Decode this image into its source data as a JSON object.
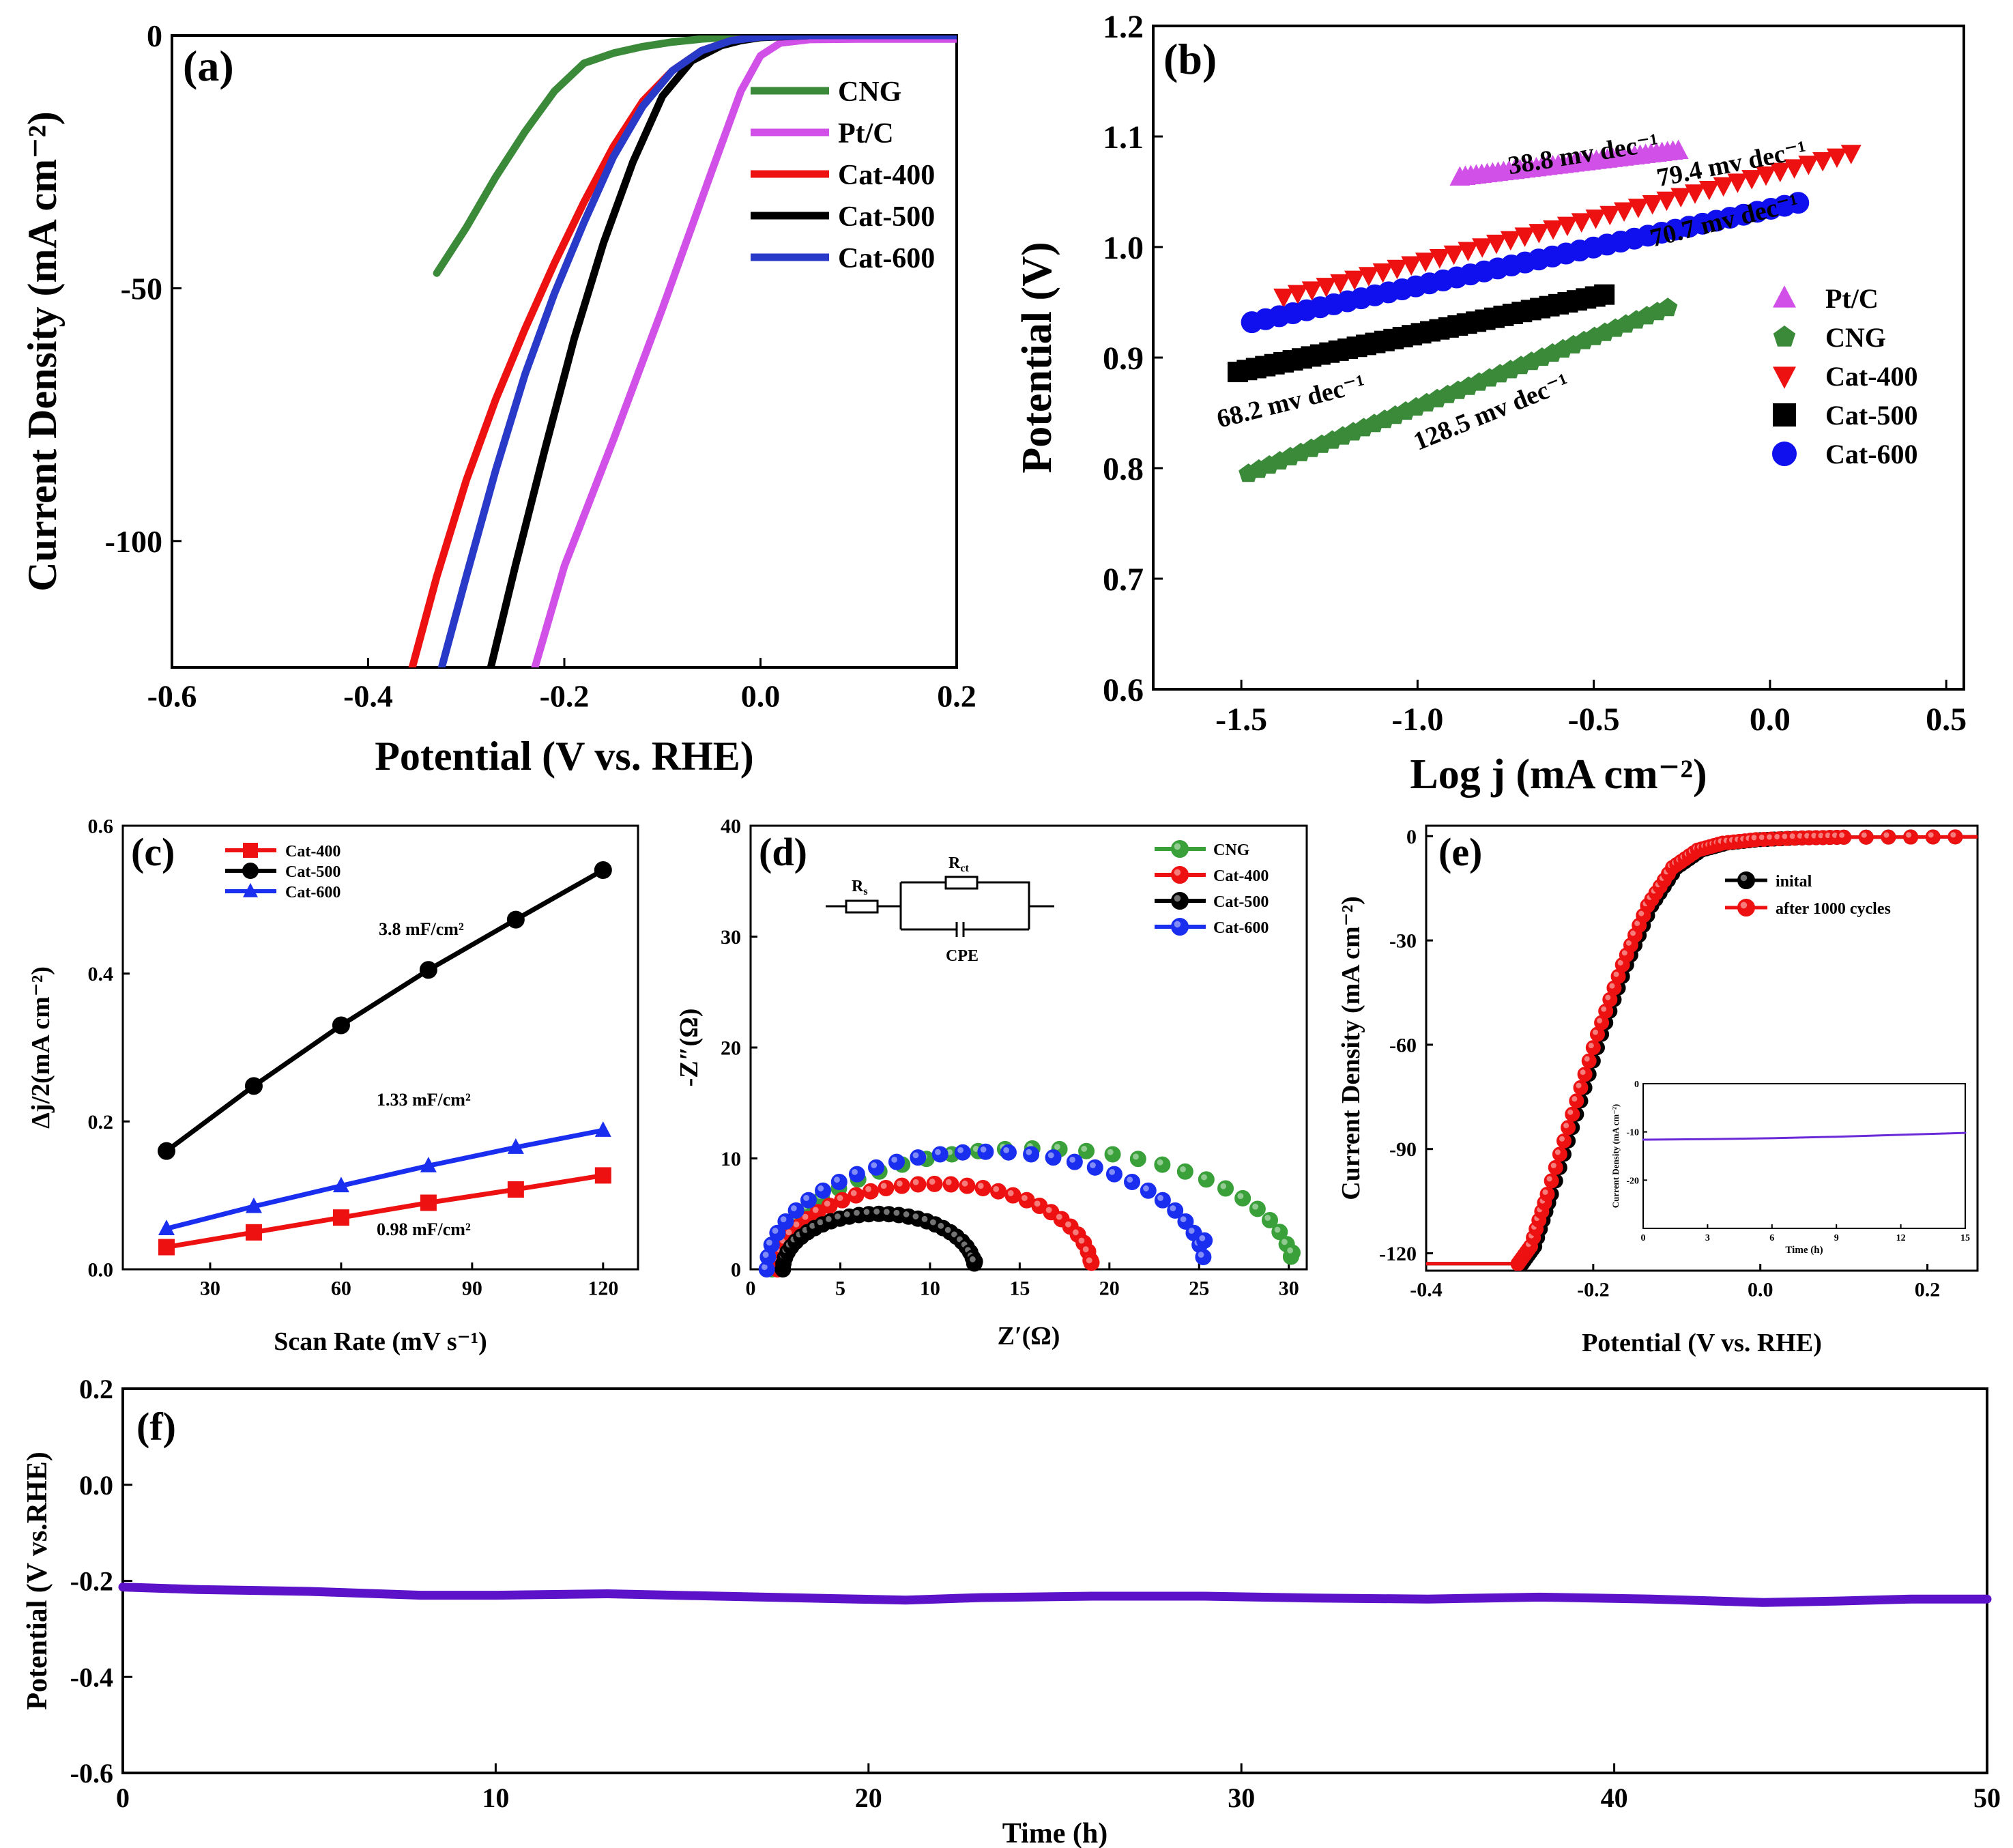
{
  "chart_data": [
    {
      "panel": "(a)",
      "type": "line",
      "xlabel": "Potential (V vs. RHE)",
      "ylabel": "Current Density (mA cm⁻²)",
      "xlim": [
        -0.6,
        0.2
      ],
      "ylim": [
        -125,
        0
      ],
      "xticks": [
        "-0.6",
        "-0.4",
        "-0.2",
        "0.0",
        "0.2"
      ],
      "yticks": [
        "0",
        "-50",
        "-100"
      ],
      "legend": "top-right",
      "series": [
        {
          "name": "CNG",
          "color": "#3a8a3a",
          "x": [
            -0.33,
            -0.3,
            -0.27,
            -0.24,
            -0.21,
            -0.18,
            -0.15,
            -0.12,
            -0.09,
            -0.06,
            -0.03,
            0.0,
            0.05,
            0.1,
            0.15,
            0.2
          ],
          "y": [
            -47,
            -38,
            -28,
            -19,
            -11,
            -5.5,
            -3.5,
            -2.2,
            -1.3,
            -0.7,
            -0.3,
            -0.1,
            0,
            0,
            0,
            0
          ]
        },
        {
          "name": "Pt/C",
          "color": "#d050e8",
          "x": [
            -0.23,
            -0.2,
            -0.15,
            -0.1,
            -0.05,
            -0.02,
            0.0,
            0.02,
            0.05,
            0.1,
            0.15,
            0.2
          ],
          "y": [
            -125,
            -105,
            -80,
            -54,
            -27,
            -11,
            -4,
            -1.5,
            -0.8,
            -0.7,
            -0.7,
            -0.7
          ]
        },
        {
          "name": "Cat-400",
          "color": "#ee1111",
          "x": [
            -0.355,
            -0.33,
            -0.3,
            -0.27,
            -0.24,
            -0.21,
            -0.18,
            -0.15,
            -0.12,
            -0.09,
            -0.06,
            -0.03,
            0.0,
            0.05,
            0.2
          ],
          "y": [
            -125,
            -107,
            -88,
            -72,
            -58,
            -45,
            -33,
            -22,
            -13,
            -7,
            -3,
            -1,
            -0.2,
            0,
            0
          ]
        },
        {
          "name": "Cat-500",
          "color": "#000000",
          "x": [
            -0.275,
            -0.25,
            -0.22,
            -0.19,
            -0.16,
            -0.13,
            -0.1,
            -0.07,
            -0.04,
            -0.02,
            0.0,
            0.05,
            0.2
          ],
          "y": [
            -125,
            -105,
            -82,
            -60,
            -41,
            -25,
            -12,
            -5,
            -2,
            -1,
            -0.4,
            0,
            0
          ]
        },
        {
          "name": "Cat-600",
          "color": "#2a3ac8",
          "x": [
            -0.325,
            -0.3,
            -0.27,
            -0.24,
            -0.21,
            -0.18,
            -0.15,
            -0.12,
            -0.09,
            -0.06,
            -0.03,
            0.0,
            0.05,
            0.2
          ],
          "y": [
            -125,
            -107,
            -86,
            -67,
            -51,
            -37,
            -24,
            -14,
            -7,
            -3,
            -1,
            -0.3,
            0,
            0
          ]
        }
      ]
    },
    {
      "panel": "(b)",
      "type": "scatter",
      "xlabel": "Log j (mA cm⁻²)",
      "ylabel": "Potential (V)",
      "xlim": [
        -1.75,
        0.55
      ],
      "ylim": [
        0.6,
        1.2
      ],
      "xticks": [
        "-1.5",
        "-1.0",
        "-0.5",
        "0.0",
        "0.5"
      ],
      "yticks": [
        "0.6",
        "0.7",
        "0.8",
        "0.9",
        "1.0",
        "1.1",
        "1.2"
      ],
      "legend": "right",
      "series": [
        {
          "name": "Pt/C",
          "color": "#d050e8",
          "marker": "triangle-up",
          "x": [
            -0.88,
            -0.26
          ],
          "y": [
            1.063,
            1.087
          ],
          "slope_label": "38.8 mv dec⁻¹"
        },
        {
          "name": "CNG",
          "color": "#3a8a3a",
          "marker": "pentagon",
          "x": [
            -1.48,
            -0.29
          ],
          "y": [
            0.795,
            0.945
          ],
          "slope_label": "128.5 mv dec⁻¹"
        },
        {
          "name": "Cat-400",
          "color": "#ee1111",
          "marker": "triangle-down",
          "x": [
            -1.38,
            0.23
          ],
          "y": [
            0.955,
            1.085
          ],
          "slope_label": "79.4 mv dec⁻¹"
        },
        {
          "name": "Cat-500",
          "color": "#000000",
          "marker": "square",
          "x": [
            -1.51,
            -0.47
          ],
          "y": [
            0.887,
            0.957
          ],
          "slope_label": "68.2 mv dec⁻¹"
        },
        {
          "name": "Cat-600",
          "color": "#1010ee",
          "marker": "circle",
          "x": [
            -1.47,
            0.08
          ],
          "y": [
            0.932,
            1.04
          ],
          "slope_label": "70.7 mv dec⁻¹"
        }
      ]
    },
    {
      "panel": "(c)",
      "type": "line",
      "xlabel": "Scan Rate (mV s⁻¹)",
      "ylabel": "Δj/2(mA cm⁻²)",
      "xlim": [
        10,
        128
      ],
      "ylim": [
        0,
        0.6
      ],
      "xticks": [
        "30",
        "60",
        "90",
        "120"
      ],
      "yticks": [
        "0.0",
        "0.2",
        "0.4",
        "0.6"
      ],
      "legend": "top-left",
      "series": [
        {
          "name": "Cat-400",
          "color": "#ee1111",
          "marker": "square",
          "x": [
            20,
            40,
            60,
            80,
            100,
            120
          ],
          "y": [
            0.03,
            0.05,
            0.07,
            0.09,
            0.108,
            0.127
          ],
          "label": "0.98 mF/cm²"
        },
        {
          "name": "Cat-500",
          "color": "#000000",
          "marker": "circle",
          "x": [
            20,
            40,
            60,
            80,
            100,
            120
          ],
          "y": [
            0.16,
            0.248,
            0.33,
            0.405,
            0.473,
            0.54
          ],
          "label": "3.8 mF/cm²"
        },
        {
          "name": "Cat-600",
          "color": "#1a2ef0",
          "marker": "triangle-up",
          "x": [
            20,
            40,
            60,
            80,
            100,
            120
          ],
          "y": [
            0.055,
            0.085,
            0.113,
            0.14,
            0.165,
            0.188
          ],
          "label": "1.33 mF/cm²"
        }
      ]
    },
    {
      "panel": "(d)",
      "type": "scatter",
      "xlabel": "Z′(Ω)",
      "ylabel": "-Z″(Ω)",
      "xlim": [
        0,
        31
      ],
      "ylim": [
        0,
        40
      ],
      "xticks": [
        "0",
        "5",
        "10",
        "15",
        "20",
        "25",
        "30"
      ],
      "yticks": [
        "0",
        "10",
        "20",
        "30",
        "40"
      ],
      "legend": "top-right",
      "circuit": {
        "rs": "R",
        "rs_sub": "s",
        "rct": "R",
        "rct_sub": "ct",
        "cpe": "CPE"
      },
      "series": [
        {
          "name": "CNG",
          "color": "#3aa03a",
          "arc": {
            "x0": 1.2,
            "x1": 30.2,
            "peak": 10.9,
            "end_y": 1.5
          }
        },
        {
          "name": "Cat-400",
          "color": "#ee1111",
          "arc": {
            "x0": 1.5,
            "x1": 19.0,
            "peak": 7.7,
            "end_y": 0.6
          }
        },
        {
          "name": "Cat-500",
          "color": "#000000",
          "arc": {
            "x0": 1.8,
            "x1": 12.5,
            "peak": 5.0,
            "end_y": 0.7
          }
        },
        {
          "name": "Cat-600",
          "color": "#1a2ef0",
          "arc": {
            "x0": 0.9,
            "x1": 25.3,
            "peak": 10.6,
            "end_y": 2.6
          }
        }
      ]
    },
    {
      "panel": "(e)",
      "type": "line",
      "xlabel": "Potential (V vs. RHE)",
      "ylabel": "Current Density (mA cm⁻²)",
      "xlim": [
        -0.4,
        0.26
      ],
      "ylim": [
        -125,
        3
      ],
      "xticks": [
        "-0.4",
        "-0.2",
        "0.0",
        "0.2"
      ],
      "yticks": [
        "0",
        "-30",
        "-60",
        "-90",
        "-120"
      ],
      "legend": "top-right",
      "series": [
        {
          "name": "inital",
          "color": "#000000",
          "x": [
            -0.4,
            -0.285,
            -0.27,
            -0.25,
            -0.22,
            -0.19,
            -0.16,
            -0.13,
            -0.1,
            -0.07,
            -0.04,
            0.0,
            0.05,
            0.1,
            0.26
          ],
          "y": [
            -123,
            -123,
            -118,
            -103,
            -80,
            -57,
            -37,
            -20,
            -9,
            -4,
            -2,
            -1,
            -0.5,
            -0.3,
            -0.2
          ]
        },
        {
          "name": "after 1000 cycles",
          "color": "#ee1111",
          "x": [
            -0.4,
            -0.29,
            -0.275,
            -0.255,
            -0.225,
            -0.195,
            -0.165,
            -0.135,
            -0.105,
            -0.075,
            -0.045,
            -0.005,
            0.05,
            0.1,
            0.26
          ],
          "y": [
            -123,
            -123,
            -118,
            -103,
            -80,
            -57,
            -37,
            -20,
            -9,
            -4,
            -2,
            -1,
            -0.5,
            -0.3,
            -0.2
          ]
        }
      ],
      "inset": {
        "type": "line",
        "xlabel": "Time (h)",
        "ylabel": "Current Density (mA cm⁻²)",
        "xlim": [
          0,
          15
        ],
        "ylim": [
          -30,
          0
        ],
        "xticks": [
          "0",
          "3",
          "6",
          "9",
          "12",
          "15"
        ],
        "yticks": [
          "0",
          "-10",
          "-20"
        ],
        "series": [
          {
            "name": "i-t",
            "color": "#6b2ad8",
            "x": [
              0,
              3,
              6,
              9,
              12,
              15
            ],
            "y": [
              -11.6,
              -11.5,
              -11.3,
              -11.0,
              -10.6,
              -10.2
            ]
          }
        ]
      }
    },
    {
      "panel": "(f)",
      "type": "line",
      "xlabel": "Time (h)",
      "ylabel": "Potential (V vs.RHE)",
      "xlim": [
        0,
        50
      ],
      "ylim": [
        -0.6,
        0.2
      ],
      "xticks": [
        "0",
        "10",
        "20",
        "30",
        "40",
        "50"
      ],
      "yticks": [
        "0.2",
        "0.0",
        "-0.2",
        "-0.4",
        "-0.6"
      ],
      "series": [
        {
          "name": "v-t",
          "color": "#5b12c8",
          "x": [
            0,
            2,
            5,
            8,
            10,
            13,
            16,
            19,
            21,
            23,
            26,
            29,
            32,
            35,
            38,
            41,
            44,
            46,
            48,
            50
          ],
          "y": [
            -0.213,
            -0.218,
            -0.222,
            -0.23,
            -0.23,
            -0.227,
            -0.232,
            -0.237,
            -0.24,
            -0.235,
            -0.232,
            -0.232,
            -0.236,
            -0.238,
            -0.234,
            -0.238,
            -0.245,
            -0.242,
            -0.238,
            -0.238
          ]
        }
      ]
    }
  ]
}
